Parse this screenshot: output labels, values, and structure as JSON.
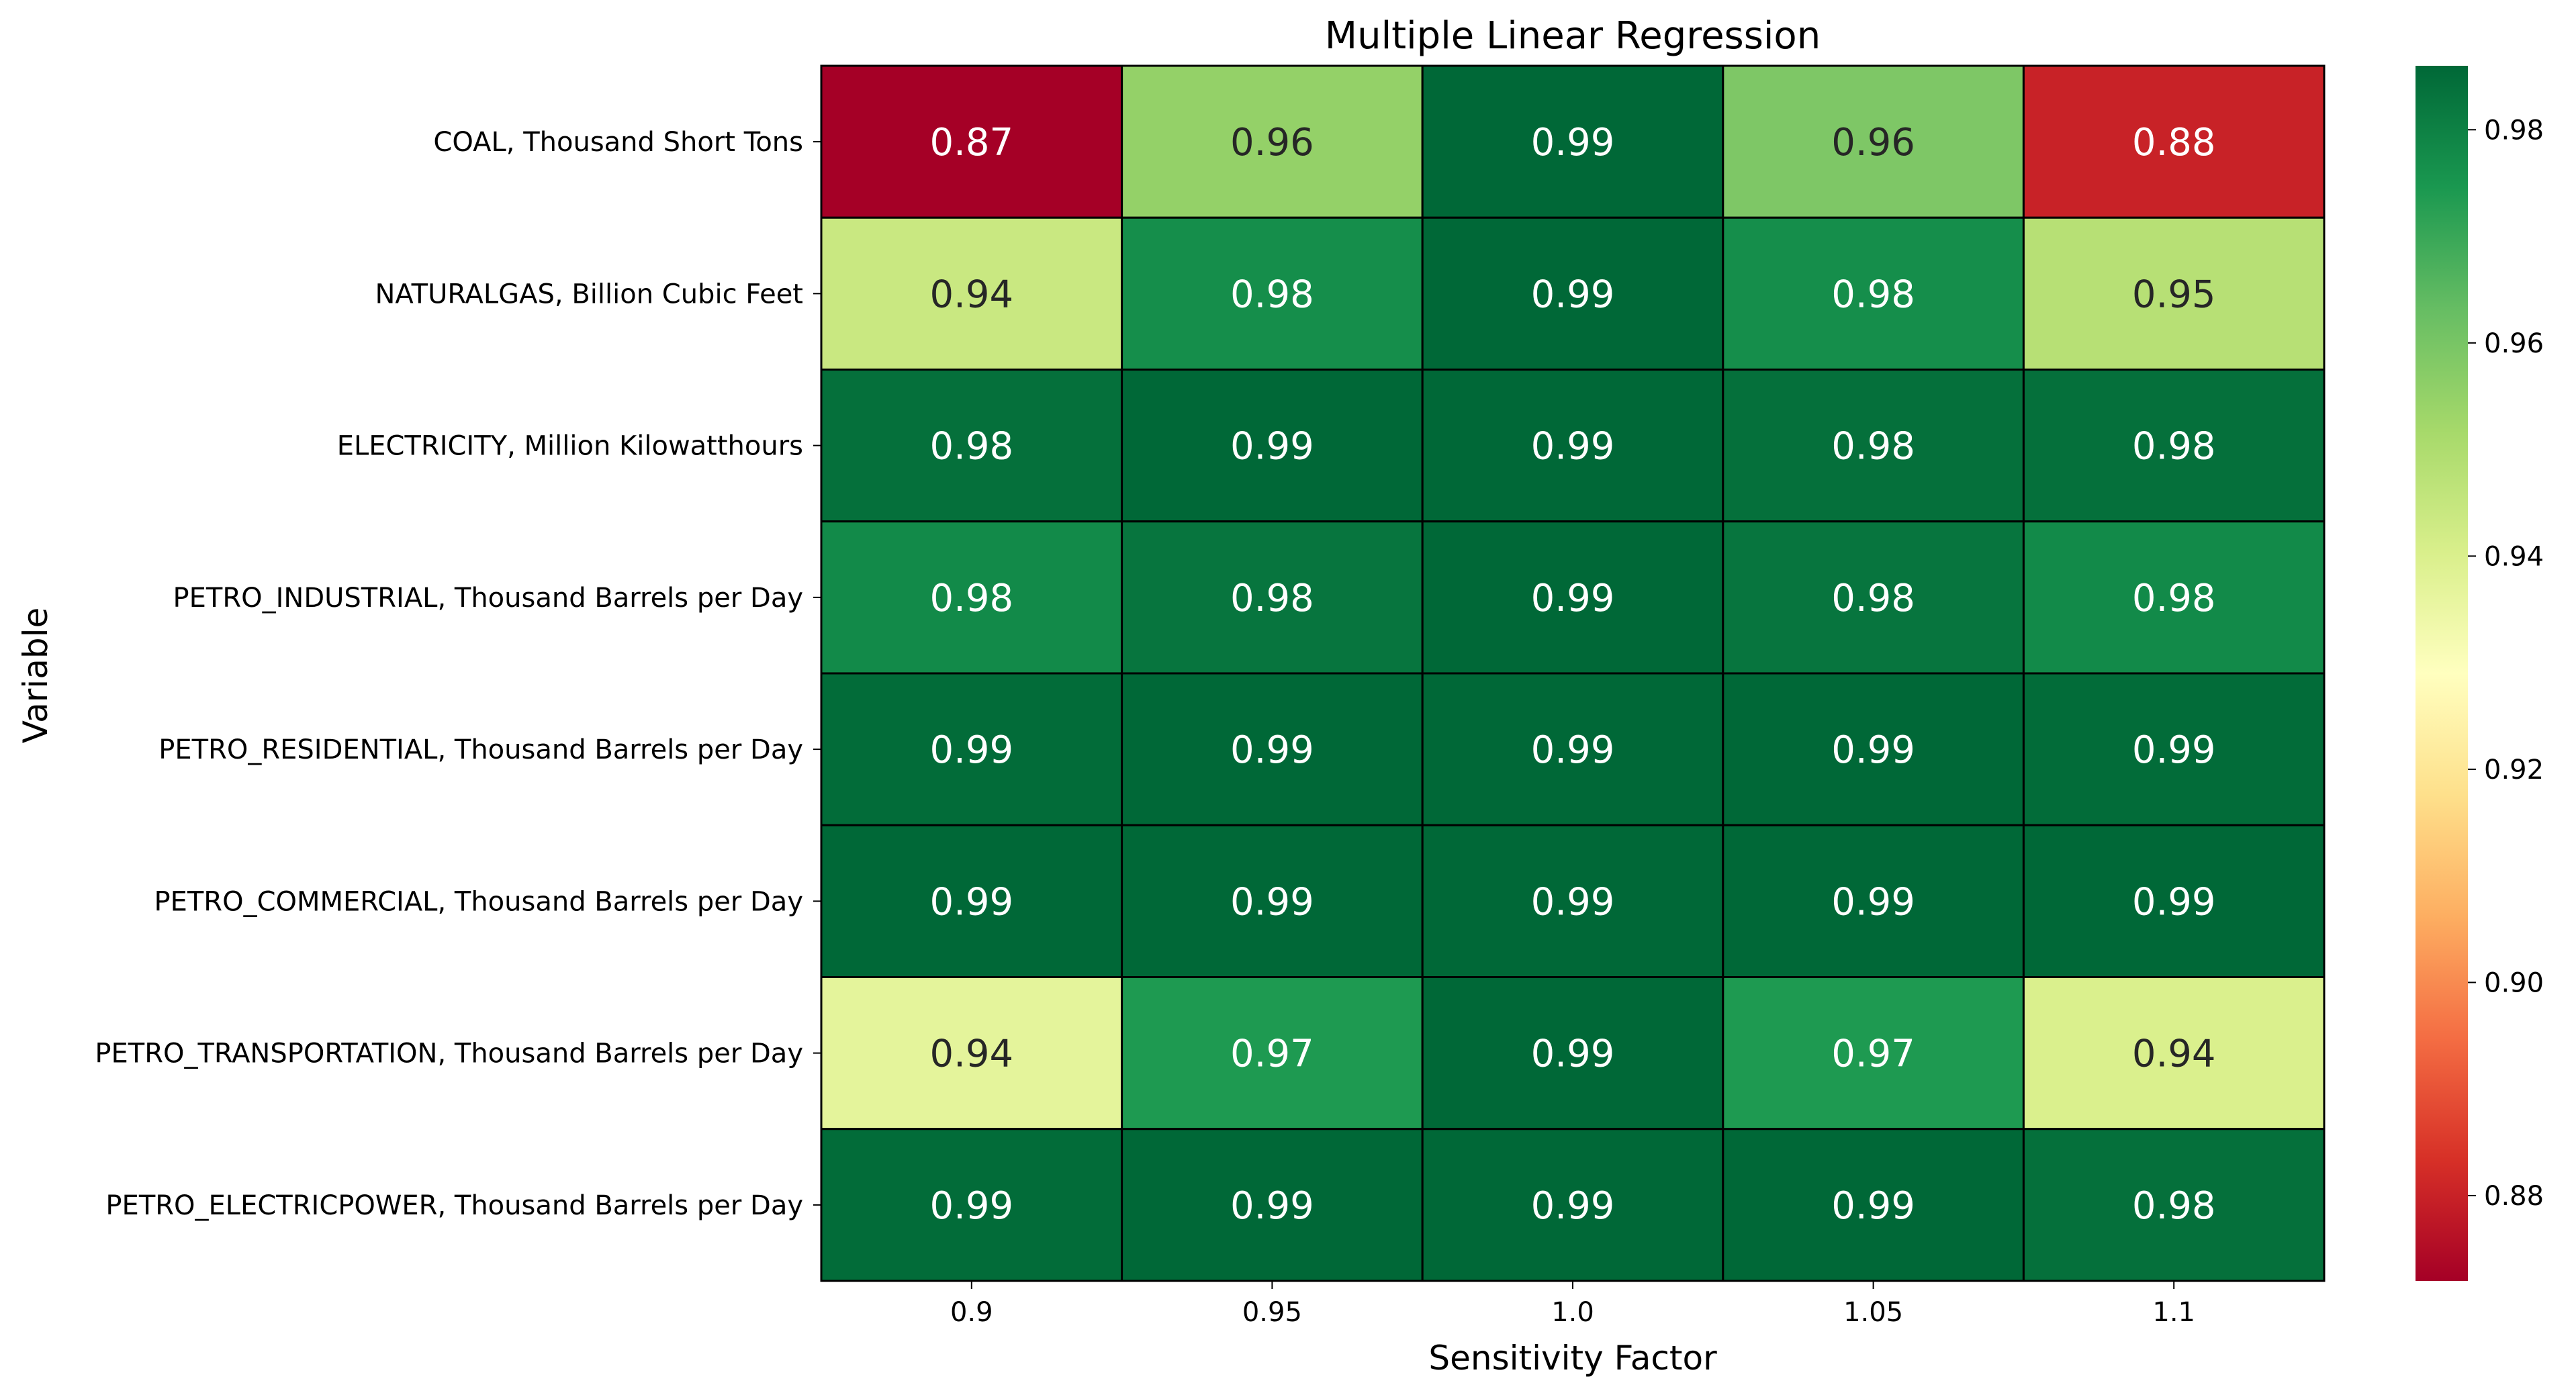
{
  "chart_data": {
    "type": "heatmap",
    "title": "Multiple Linear Regression",
    "xlabel": "Sensitivity Factor",
    "ylabel": "Variable",
    "x_categories": [
      "0.9",
      "0.95",
      "1.0",
      "1.05",
      "1.1"
    ],
    "y_categories": [
      "COAL, Thousand Short Tons",
      "NATURALGAS, Billion Cubic Feet",
      "ELECTRICITY, Million Kilowatthours",
      "PETRO_INDUSTRIAL, Thousand Barrels per Day",
      "PETRO_RESIDENTIAL, Thousand Barrels per Day",
      "PETRO_COMMERCIAL, Thousand Barrels per Day",
      "PETRO_TRANSPORTATION, Thousand Barrels per Day",
      "PETRO_ELECTRICPOWER, Thousand Barrels per Day"
    ],
    "values": [
      [
        0.872,
        0.955,
        0.986,
        0.959,
        0.88
      ],
      [
        0.944,
        0.977,
        0.986,
        0.977,
        0.948
      ],
      [
        0.984,
        0.986,
        0.986,
        0.984,
        0.984
      ],
      [
        0.978,
        0.983,
        0.986,
        0.983,
        0.978
      ],
      [
        0.985,
        0.986,
        0.986,
        0.986,
        0.985
      ],
      [
        0.986,
        0.986,
        0.986,
        0.986,
        0.986
      ],
      [
        0.937,
        0.974,
        0.986,
        0.974,
        0.94
      ],
      [
        0.985,
        0.986,
        0.986,
        0.986,
        0.984
      ]
    ],
    "cell_labels": [
      [
        "0.87",
        "0.96",
        "0.99",
        "0.96",
        "0.88"
      ],
      [
        "0.94",
        "0.98",
        "0.99",
        "0.98",
        "0.95"
      ],
      [
        "0.98",
        "0.99",
        "0.99",
        "0.98",
        "0.98"
      ],
      [
        "0.98",
        "0.98",
        "0.99",
        "0.98",
        "0.98"
      ],
      [
        "0.99",
        "0.99",
        "0.99",
        "0.99",
        "0.99"
      ],
      [
        "0.99",
        "0.99",
        "0.99",
        "0.99",
        "0.99"
      ],
      [
        "0.94",
        "0.97",
        "0.99",
        "0.97",
        "0.94"
      ],
      [
        "0.99",
        "0.99",
        "0.99",
        "0.99",
        "0.98"
      ]
    ],
    "colormap": "RdYlGn",
    "color_range": [
      0.872,
      0.986
    ],
    "colorbar_ticks": [
      0.88,
      0.9,
      0.92,
      0.94,
      0.96,
      0.98
    ],
    "colorbar_tick_labels": [
      "0.88",
      "0.90",
      "0.92",
      "0.94",
      "0.96",
      "0.98"
    ],
    "cell_border_color": "#000000",
    "grid": false,
    "colorbar_position": "right"
  }
}
